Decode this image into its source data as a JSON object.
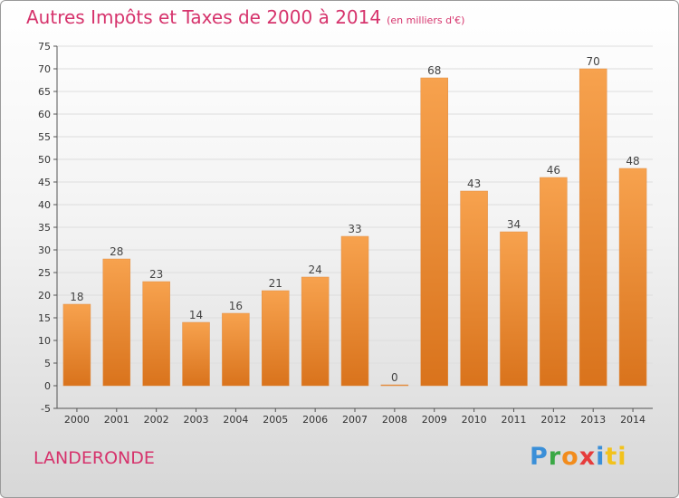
{
  "title": "Autres Impôts et Taxes de 2000 à 2014",
  "unit": "(en milliers d'€)",
  "commune": "LANDERONDE",
  "logo": [
    "P",
    "r",
    "o",
    "x",
    "i",
    "ti"
  ],
  "colors": {
    "title": "#d6336c",
    "bar_top": "#f7a24e",
    "bar_bottom": "#d9731c",
    "grid": "#dddddd"
  },
  "chart_data": {
    "type": "bar",
    "categories": [
      "2000",
      "2001",
      "2002",
      "2003",
      "2004",
      "2005",
      "2006",
      "2007",
      "2008",
      "2009",
      "2010",
      "2011",
      "2012",
      "2013",
      "2014"
    ],
    "values": [
      18,
      28,
      23,
      14,
      16,
      21,
      24,
      33,
      0,
      68,
      43,
      34,
      46,
      70,
      48
    ],
    "ylim": [
      -5,
      75
    ],
    "yticks": [
      -5,
      0,
      5,
      10,
      15,
      20,
      25,
      30,
      35,
      40,
      45,
      50,
      55,
      60,
      65,
      70,
      75
    ],
    "grid": true,
    "xlabel": "",
    "ylabel": ""
  }
}
